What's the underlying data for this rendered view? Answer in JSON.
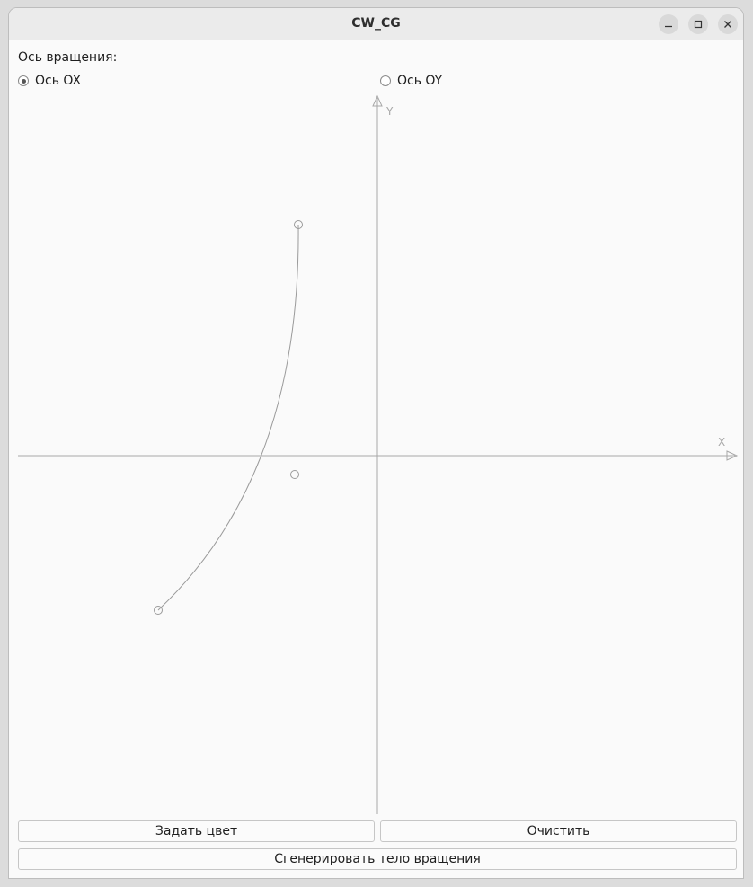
{
  "window": {
    "title": "CW_CG",
    "controls": [
      "minimize-icon",
      "maximize-icon",
      "close-icon"
    ]
  },
  "rotation": {
    "label": "Ось вращения:",
    "options": [
      {
        "label": "Ось OX",
        "checked": true
      },
      {
        "label": "Ось OY",
        "checked": false
      }
    ]
  },
  "plot": {
    "x_axis_label": "X",
    "y_axis_label": "Y",
    "colors": {
      "axis": "#9e9e9e",
      "curve": "#9a9a9a",
      "background": "#fafafa"
    }
  },
  "buttons": {
    "set_color": "Задать цвет",
    "clear": "Очистить",
    "generate": "Сгенерировать тело вращения"
  }
}
